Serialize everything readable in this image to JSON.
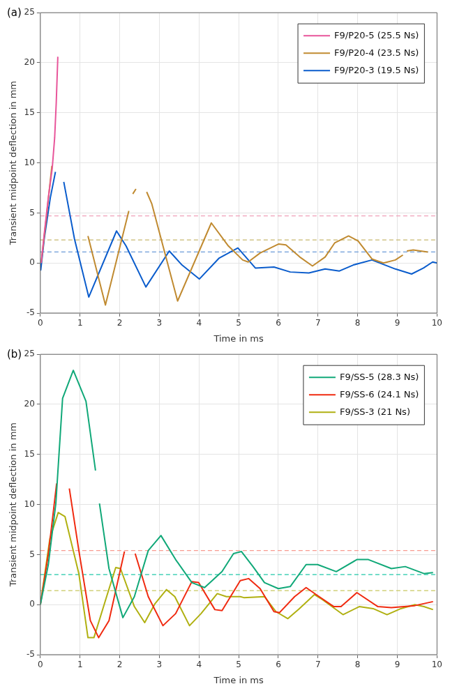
{
  "chart_data": [
    {
      "type": "line",
      "title": "(a)",
      "xlabel": "Time in ms",
      "ylabel": "Transient midpoint deflection in mm",
      "xlim": [
        0,
        10
      ],
      "ylim": [
        -5,
        25
      ],
      "xticks": [
        0,
        1,
        2,
        3,
        4,
        5,
        6,
        7,
        8,
        9,
        10
      ],
      "yticks": [
        -5,
        0,
        5,
        10,
        15,
        20,
        25
      ],
      "grid": true,
      "legend": "top right",
      "line_style": "solid",
      "marker": "none",
      "series": [
        {
          "name": "F9/P20-5 (25.5 Ns)",
          "color": "#e8559a",
          "x": [
            0.02,
            0.1,
            0.2,
            0.3,
            0.36,
            0.4,
            0.44
          ],
          "values": [
            0,
            3,
            6.5,
            9.5,
            12.5,
            16,
            20.6
          ]
        },
        {
          "name": "F9/P20-4 (23.5 Ns)",
          "color": "#c08a30",
          "x": [
            0.02,
            0.15,
            0.29,
            0.7,
            1.2,
            1.64,
            2.23,
            2.28,
            2.33,
            2.41,
            2.5,
            2.68,
            2.81,
            3.46,
            4.31,
            4.74,
            5.1,
            5.24,
            5.54,
            6.01,
            6.19,
            6.54,
            6.86,
            7.18,
            7.42,
            7.77,
            8.01,
            8.36,
            8.65,
            8.95,
            9.14,
            9.2,
            9.24,
            9.4,
            9.77
          ],
          "values": [
            0,
            4.5,
            9.7,
            null,
            2.7,
            -4.2,
            5.2,
            null,
            6.9,
            7.4,
            null,
            7.1,
            5.9,
            -3.8,
            4.0,
            1.7,
            0.3,
            0.1,
            1.0,
            1.9,
            1.8,
            0.6,
            -0.3,
            0.6,
            2.0,
            2.7,
            2.2,
            0.4,
            0,
            0.3,
            0.8,
            null,
            1.2,
            1.3,
            1.1
          ]
        },
        {
          "name": "F9/P20-3 (19.5 Ns)",
          "color": "#0a5ccc",
          "x": [
            0,
            0.01,
            0.1,
            0.25,
            0.38,
            0.5,
            0.59,
            0.86,
            1.22,
            1.92,
            2.16,
            2.66,
            3.25,
            3.57,
            4.01,
            4.51,
            4.98,
            5.42,
            5.89,
            6.3,
            6.77,
            7.18,
            7.54,
            7.89,
            8.36,
            8.95,
            9.36,
            9.66,
            9.89,
            10
          ],
          "values": [
            0,
            -0.7,
            2.5,
            6.5,
            9.1,
            null,
            8.1,
            2.4,
            -3.4,
            3.2,
            1.7,
            -2.4,
            1.2,
            -0.2,
            -1.6,
            0.5,
            1.5,
            -0.5,
            -0.4,
            -0.9,
            -1.0,
            -0.6,
            -0.8,
            -0.2,
            0.3,
            -0.6,
            -1.1,
            -0.5,
            0.1,
            0.0
          ]
        }
      ],
      "ref_lines": [
        {
          "axis": "y",
          "value": 4.7,
          "color": "#f0a0b8",
          "line_style": "dashed"
        },
        {
          "axis": "y",
          "value": 2.3,
          "color": "#c8b870",
          "line_style": "dashed"
        },
        {
          "axis": "y",
          "value": 1.1,
          "color": "#6a9ad8",
          "line_style": "dashed"
        }
      ]
    },
    {
      "type": "line",
      "title": "(b)",
      "xlabel": "Time in ms",
      "ylabel": "Transient midpoint deflection in mm",
      "xlim": [
        0,
        10
      ],
      "ylim": [
        -5,
        25
      ],
      "xticks": [
        0,
        1,
        2,
        3,
        4,
        5,
        6,
        7,
        8,
        9,
        10
      ],
      "yticks": [
        -5,
        0,
        5,
        10,
        15,
        20,
        25
      ],
      "grid": true,
      "legend": "top right",
      "line_style": "solid",
      "marker": "none",
      "series": [
        {
          "name": "F9/SS-5 (28.3 Ns)",
          "color": "#10a878",
          "x": [
            0,
            0.2,
            0.39,
            0.56,
            0.83,
            1.15,
            1.39,
            1.44,
            1.49,
            1.73,
            2.08,
            2.37,
            2.72,
            3.04,
            3.41,
            3.82,
            4.14,
            4.58,
            4.87,
            5.07,
            5.36,
            5.65,
            6.0,
            6.3,
            6.7,
            6.99,
            7.46,
            7.98,
            8.27,
            8.85,
            9.2,
            9.67,
            9.9
          ],
          "values": [
            0,
            4,
            10.1,
            20.6,
            23.4,
            20.3,
            13.4,
            null,
            10.1,
            3.6,
            -1.3,
            0.8,
            5.4,
            6.9,
            4.5,
            2.2,
            1.7,
            3.3,
            5.1,
            5.3,
            3.8,
            2.2,
            1.6,
            1.8,
            4.0,
            4.0,
            3.3,
            4.5,
            4.5,
            3.6,
            3.8,
            3.1,
            3.2
          ]
        },
        {
          "name": "F9/SS-6 (24.1 Ns)",
          "color": "#f02a10",
          "x": [
            0,
            0.2,
            0.41,
            0.6,
            0.73,
            0.97,
            1.26,
            1.47,
            1.73,
            2.12,
            2.25,
            2.39,
            2.72,
            3.09,
            3.41,
            3.82,
            3.99,
            4.4,
            4.58,
            5.04,
            5.25,
            5.54,
            5.89,
            6.03,
            6.41,
            6.7,
            6.99,
            7.4,
            7.58,
            7.98,
            8.51,
            8.85,
            9.44,
            9.9
          ],
          "values": [
            0,
            5,
            12.1,
            null,
            11.6,
            5.4,
            -1.6,
            -3.3,
            -1.6,
            5.3,
            null,
            5.1,
            0.8,
            -2.1,
            -0.9,
            2.3,
            2.2,
            -0.5,
            -0.6,
            2.4,
            2.6,
            1.6,
            -0.7,
            -0.8,
            0.8,
            1.7,
            0.9,
            -0.2,
            -0.2,
            1.2,
            -0.2,
            -0.3,
            -0.1,
            0.3
          ]
        },
        {
          "name": "F9/SS-3 (21 Ns)",
          "color": "#b0b010",
          "x": [
            0,
            0.24,
            0.45,
            0.62,
            0.97,
            1.2,
            1.35,
            1.67,
            1.9,
            2.02,
            2.37,
            2.63,
            2.89,
            3.18,
            3.39,
            3.76,
            4.05,
            4.46,
            4.69,
            5.04,
            5.13,
            5.65,
            5.94,
            6.24,
            6.53,
            6.91,
            7.11,
            7.63,
            8.04,
            8.39,
            8.74,
            9.09,
            9.44,
            9.67,
            9.9
          ],
          "values": [
            0,
            6.6,
            9.2,
            8.8,
            3.1,
            -3.3,
            -3.3,
            0.8,
            3.7,
            3.6,
            -0.2,
            -1.8,
            0.1,
            1.5,
            0.8,
            -2.1,
            -0.9,
            1.1,
            0.8,
            0.8,
            0.7,
            0.8,
            -0.7,
            -1.4,
            -0.4,
            1.0,
            0.5,
            -1.0,
            -0.2,
            -0.4,
            -1.0,
            -0.4,
            0.0,
            -0.2,
            -0.5
          ]
        }
      ],
      "ref_lines": [
        {
          "axis": "y",
          "value": 5.4,
          "color": "#f89a90",
          "line_style": "dashed"
        },
        {
          "axis": "y",
          "value": 3.0,
          "color": "#20c8a8",
          "line_style": "dashed"
        },
        {
          "axis": "y",
          "value": 1.4,
          "color": "#c8c860",
          "line_style": "dashed"
        }
      ]
    }
  ]
}
